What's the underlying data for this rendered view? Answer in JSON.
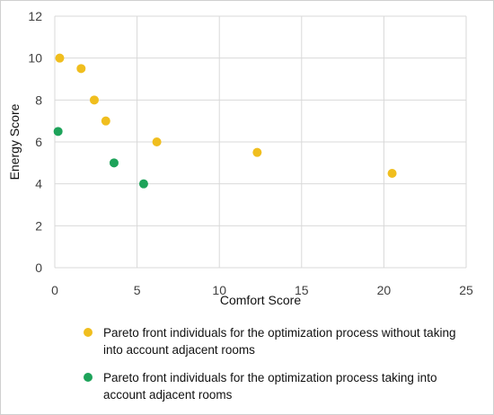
{
  "chart_data": {
    "type": "scatter",
    "xlabel": "Comfort Score",
    "ylabel": "Energy Score",
    "xlim": [
      0,
      25
    ],
    "ylim": [
      0,
      12
    ],
    "xticks": [
      "0",
      "5",
      "10",
      "15",
      "20",
      "25"
    ],
    "yticks": [
      "0",
      "2",
      "4",
      "6",
      "8",
      "10",
      "12"
    ],
    "grid": true,
    "legend_position": "bottom",
    "series": [
      {
        "name": "Pareto front individuals for the optimization process without taking into account adjacent rooms",
        "color": "#f0be1e",
        "points": [
          {
            "x": 0.3,
            "y": 10.0
          },
          {
            "x": 1.6,
            "y": 9.5
          },
          {
            "x": 2.4,
            "y": 8.0
          },
          {
            "x": 3.1,
            "y": 7.0
          },
          {
            "x": 6.2,
            "y": 6.0
          },
          {
            "x": 12.3,
            "y": 5.5
          },
          {
            "x": 20.5,
            "y": 4.5
          }
        ]
      },
      {
        "name": "Pareto front individuals for the optimization process taking into account adjacent rooms",
        "color": "#1ea35a",
        "points": [
          {
            "x": 0.2,
            "y": 6.5
          },
          {
            "x": 3.6,
            "y": 5.0
          },
          {
            "x": 5.4,
            "y": 4.0
          }
        ]
      }
    ]
  }
}
